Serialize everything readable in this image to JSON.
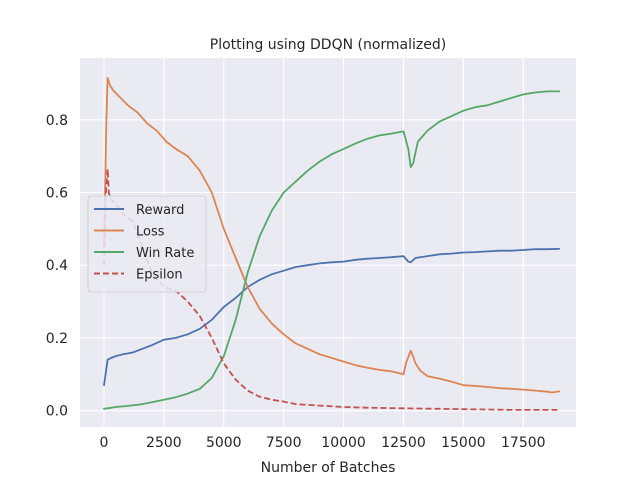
{
  "chart_data": {
    "type": "line",
    "title": "Plotting using DDQN (normalized)",
    "xlabel": "Number of Batches",
    "ylabel": "",
    "xlim": [
      -1000,
      19700
    ],
    "ylim": [
      -0.045,
      0.97
    ],
    "xticks": [
      0,
      2500,
      5000,
      7500,
      10000,
      12500,
      15000,
      17500
    ],
    "xtick_labels": [
      "0",
      "2500",
      "5000",
      "7500",
      "10000",
      "12500",
      "15000",
      "17500"
    ],
    "yticks": [
      0.0,
      0.2,
      0.4,
      0.6,
      0.8
    ],
    "ytick_labels": [
      "0.0",
      "0.2",
      "0.4",
      "0.6",
      "0.8"
    ],
    "grid": true,
    "legend_position": "center-left",
    "background": "#eaeaf2",
    "series": [
      {
        "name": "Reward",
        "color": "#4c72b0",
        "dash": "solid",
        "x": [
          0,
          150,
          300,
          500,
          800,
          1200,
          1600,
          2000,
          2500,
          3000,
          3500,
          4000,
          4500,
          5000,
          5500,
          6000,
          6500,
          7000,
          7500,
          8000,
          8500,
          9000,
          9500,
          10000,
          10500,
          11000,
          11500,
          12000,
          12500,
          12700,
          12800,
          13000,
          13500,
          14000,
          14500,
          15000,
          15500,
          16000,
          16500,
          17000,
          17500,
          18000,
          18500,
          19000
        ],
        "y": [
          0.07,
          0.14,
          0.145,
          0.15,
          0.155,
          0.16,
          0.17,
          0.18,
          0.195,
          0.2,
          0.21,
          0.225,
          0.25,
          0.285,
          0.31,
          0.34,
          0.36,
          0.375,
          0.385,
          0.395,
          0.4,
          0.405,
          0.408,
          0.41,
          0.415,
          0.418,
          0.42,
          0.422,
          0.425,
          0.41,
          0.408,
          0.42,
          0.425,
          0.43,
          0.432,
          0.435,
          0.436,
          0.438,
          0.44,
          0.44,
          0.442,
          0.444,
          0.444,
          0.445
        ]
      },
      {
        "name": "Loss",
        "color": "#dd8452",
        "dash": "solid",
        "x": [
          0,
          100,
          150,
          250,
          400,
          700,
          1000,
          1400,
          1800,
          2200,
          2600,
          3000,
          3500,
          4000,
          4500,
          5000,
          5500,
          6000,
          6500,
          7000,
          7500,
          8000,
          8500,
          9000,
          9500,
          10000,
          10500,
          11000,
          11500,
          12000,
          12500,
          12600,
          12800,
          12900,
          13000,
          13200,
          13500,
          14000,
          14500,
          15000,
          15500,
          16000,
          16500,
          17000,
          17500,
          18000,
          18500,
          18700,
          19000
        ],
        "y": [
          0.45,
          0.8,
          0.915,
          0.895,
          0.88,
          0.86,
          0.84,
          0.82,
          0.79,
          0.77,
          0.74,
          0.72,
          0.7,
          0.66,
          0.6,
          0.5,
          0.42,
          0.34,
          0.28,
          0.24,
          0.21,
          0.185,
          0.17,
          0.155,
          0.145,
          0.135,
          0.125,
          0.118,
          0.112,
          0.108,
          0.1,
          0.13,
          0.165,
          0.15,
          0.13,
          0.11,
          0.095,
          0.088,
          0.08,
          0.07,
          0.068,
          0.065,
          0.062,
          0.06,
          0.058,
          0.055,
          0.052,
          0.05,
          0.053
        ]
      },
      {
        "name": "Win Rate",
        "color": "#55a868",
        "dash": "solid",
        "x": [
          0,
          500,
          1000,
          1500,
          2000,
          2500,
          3000,
          3500,
          4000,
          4500,
          5000,
          5500,
          6000,
          6500,
          7000,
          7500,
          8000,
          8500,
          9000,
          9500,
          10000,
          10500,
          11000,
          11500,
          12000,
          12500,
          12700,
          12800,
          12900,
          13100,
          13500,
          14000,
          14500,
          15000,
          15500,
          16000,
          16500,
          17000,
          17500,
          18000,
          18500,
          19000
        ],
        "y": [
          0.005,
          0.01,
          0.013,
          0.017,
          0.023,
          0.03,
          0.037,
          0.047,
          0.06,
          0.09,
          0.15,
          0.25,
          0.38,
          0.48,
          0.55,
          0.6,
          0.63,
          0.66,
          0.685,
          0.705,
          0.72,
          0.735,
          0.748,
          0.757,
          0.762,
          0.768,
          0.72,
          0.67,
          0.68,
          0.74,
          0.77,
          0.795,
          0.81,
          0.825,
          0.835,
          0.84,
          0.85,
          0.86,
          0.87,
          0.875,
          0.878,
          0.878
        ]
      },
      {
        "name": "Epsilon",
        "color": "#c44e52",
        "dash": "dashed",
        "x": [
          0,
          80,
          150,
          200,
          300,
          400,
          600,
          800,
          1200,
          1600,
          2000,
          2500,
          3000,
          3500,
          4000,
          4500,
          5000,
          5500,
          6000,
          6500,
          7000,
          7500,
          8000,
          9000,
          10000,
          11000,
          12000,
          13000,
          14000,
          15000,
          16000,
          17000,
          18000,
          19000
        ],
        "y": [
          0.4,
          0.6,
          0.665,
          0.6,
          0.58,
          0.575,
          0.56,
          0.54,
          0.52,
          0.45,
          0.38,
          0.34,
          0.33,
          0.3,
          0.26,
          0.2,
          0.13,
          0.085,
          0.055,
          0.038,
          0.03,
          0.025,
          0.018,
          0.014,
          0.01,
          0.008,
          0.007,
          0.006,
          0.005,
          0.004,
          0.003,
          0.002,
          0.002,
          0.002
        ]
      }
    ]
  }
}
